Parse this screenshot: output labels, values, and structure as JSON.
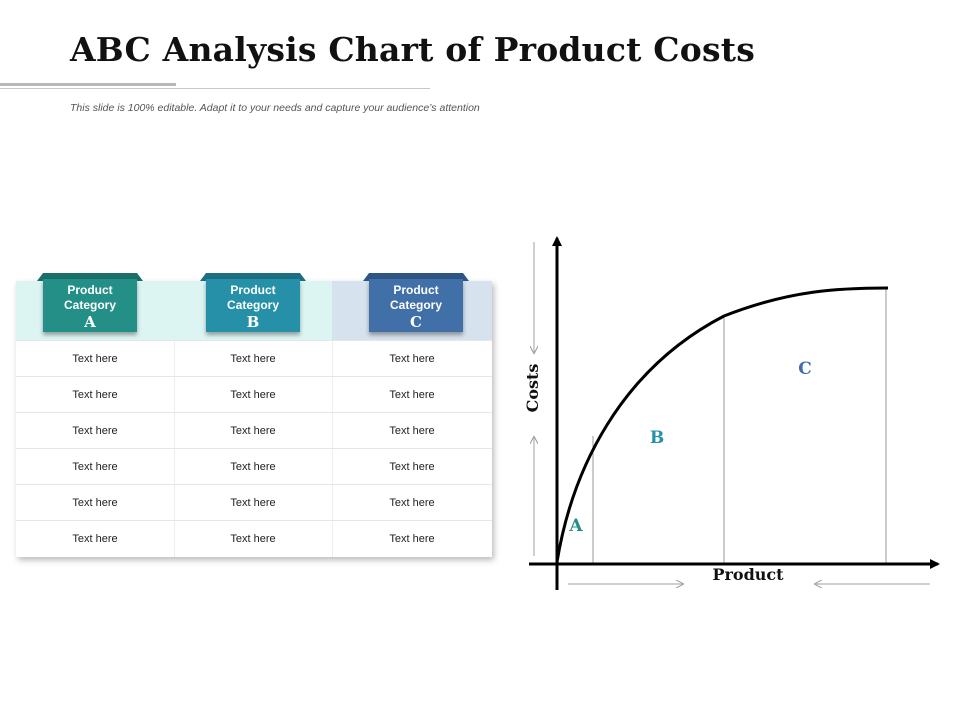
{
  "title": "ABC Analysis Chart of Product Costs",
  "subtitle": "This slide is 100% editable. Adapt it to your needs and capture your audience’s attention",
  "table": {
    "categories": [
      {
        "line1": "Product",
        "line2": "Category",
        "letter": "A",
        "color": "#238f86",
        "ear": "#1a6f68",
        "band": "#dcf5f3"
      },
      {
        "line1": "Product",
        "line2": "Category",
        "letter": "B",
        "color": "#2590a8",
        "ear": "#1c6f82",
        "band": "#dcf5f3"
      },
      {
        "line1": "Product",
        "line2": "Category",
        "letter": "C",
        "color": "#4170a8",
        "ear": "#2f5584",
        "band": "#d6e2ee"
      }
    ],
    "rows": [
      [
        "Text here",
        "Text here",
        "Text here"
      ],
      [
        "Text here",
        "Text here",
        "Text here"
      ],
      [
        "Text here",
        "Text here",
        "Text here"
      ],
      [
        "Text here",
        "Text here",
        "Text here"
      ],
      [
        "Text here",
        "Text here",
        "Text here"
      ],
      [
        "Text here",
        "Text here",
        "Text here"
      ]
    ]
  },
  "graph": {
    "ylabel": "Costs",
    "xlabel": "Product",
    "zone_a": "A",
    "zone_b": "B",
    "zone_c": "C",
    "color_a": "#238f86",
    "color_b": "#2590a8",
    "color_c": "#4170a8"
  }
}
